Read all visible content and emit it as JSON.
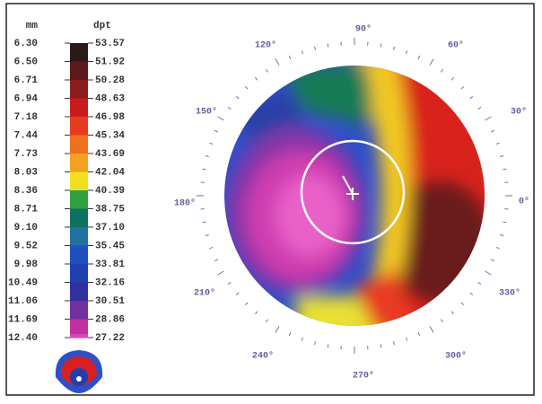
{
  "scale": {
    "header_mm": "mm",
    "header_dpt": "dpt",
    "mm": [
      "6.30",
      "6.50",
      "6.71",
      "6.94",
      "7.18",
      "7.44",
      "7.73",
      "8.03",
      "8.36",
      "8.71",
      "9.10",
      "9.52",
      "9.98",
      "10.49",
      "11.06",
      "11.69",
      "12.40"
    ],
    "dpt": [
      "53.57",
      "51.92",
      "50.28",
      "48.63",
      "46.98",
      "45.34",
      "43.69",
      "42.04",
      "40.39",
      "38.75",
      "37.10",
      "35.45",
      "33.81",
      "32.16",
      "30.51",
      "28.86",
      "27.22"
    ],
    "colors": [
      "#2a1a1a",
      "#5a1a1a",
      "#8a1c1c",
      "#c81c1c",
      "#e83a20",
      "#f07020",
      "#f4a020",
      "#f0e020",
      "#30a040",
      "#107060",
      "#2070a0",
      "#2050c0",
      "#2040b0",
      "#3030a0",
      "#7030a0",
      "#c030a0",
      "#e040c0"
    ]
  },
  "angles": {
    "a0": "0°",
    "a30": "30°",
    "a60": "60°",
    "a90": "90°",
    "a120": "120°",
    "a150": "150°",
    "a180": "180°",
    "a210": "210°",
    "a240": "240°",
    "a270": "270°",
    "a300": "300°",
    "a330": "330°"
  }
}
